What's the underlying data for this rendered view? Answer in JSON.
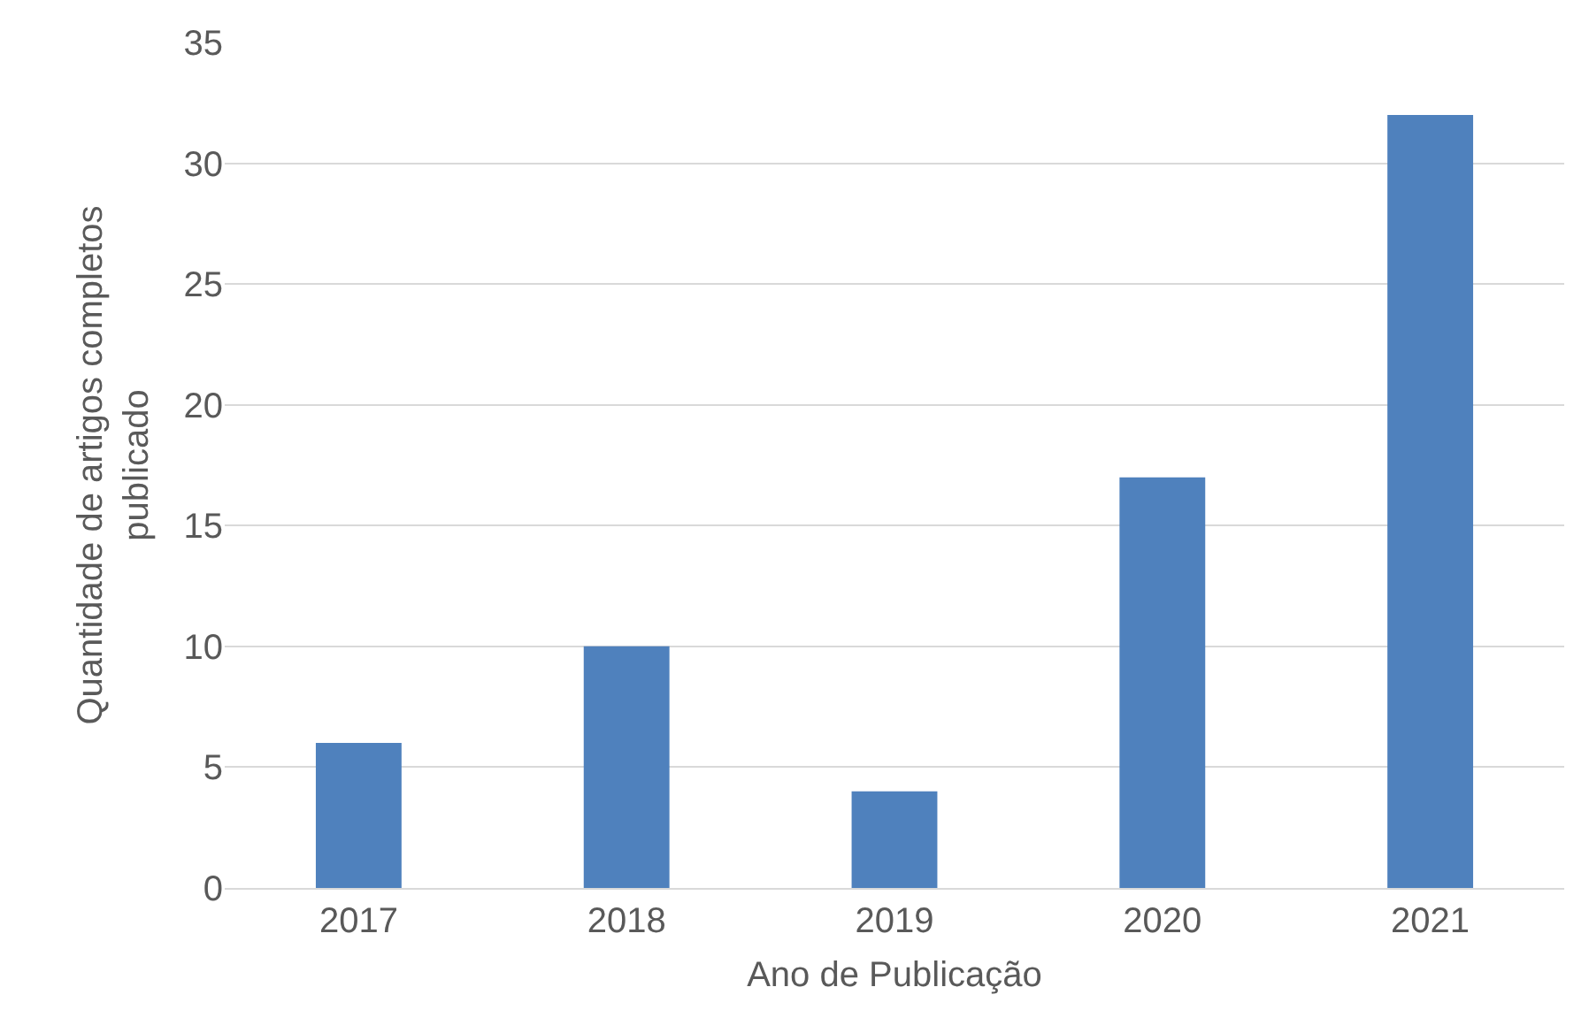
{
  "chart_data": {
    "type": "bar",
    "xlabel": "Ano de Publicação",
    "ylabel": "Quantidade de artigos completos publicado",
    "categories": [
      "2017",
      "2018",
      "2019",
      "2020",
      "2021"
    ],
    "values": [
      6,
      10,
      4,
      17,
      32
    ],
    "color": "#4f81bd",
    "ylim": [
      0,
      35
    ],
    "yticks": [
      0,
      5,
      10,
      15,
      20,
      25,
      30,
      35
    ],
    "grid": "y"
  }
}
